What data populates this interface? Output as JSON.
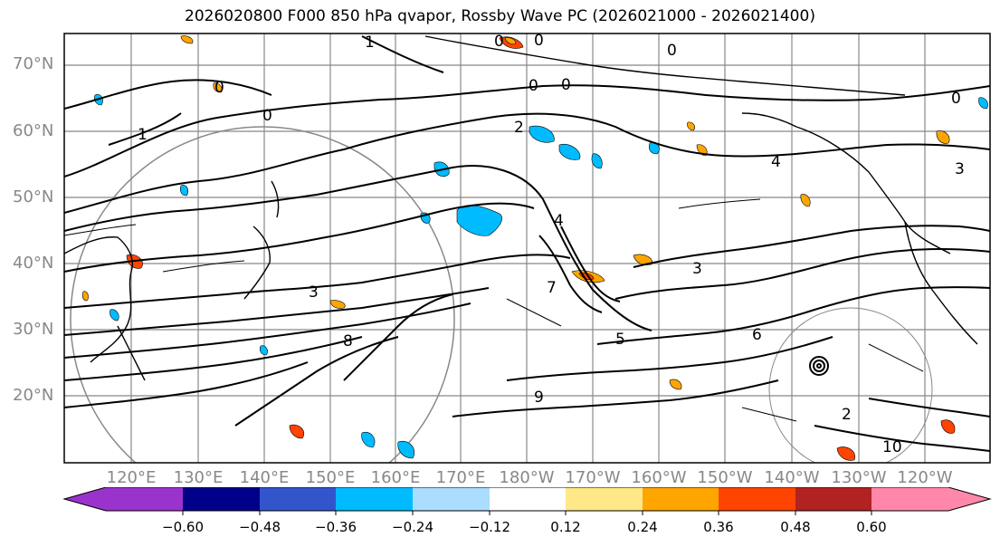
{
  "title": "2026020800 F000 850 hPa qvapor, Rossby Wave PC (2026021000 - 2026021400)",
  "lat_labels": [
    "70°N",
    "60°N",
    "50°N",
    "40°N",
    "30°N",
    "20°N"
  ],
  "lon_labels": [
    "120°E",
    "130°E",
    "140°E",
    "150°E",
    "160°E",
    "170°E",
    "180°W",
    "170°W",
    "160°W",
    "150°W",
    "140°W",
    "130°W",
    "120°W"
  ],
  "colorbar": {
    "colors": [
      "#9933cc",
      "#000088",
      "#3355cc",
      "#00bbff",
      "#aaddff",
      "#ffffff",
      "#ffe888",
      "#ffa500",
      "#ff4400",
      "#b22222",
      "#ff88aa"
    ],
    "tick_labels": [
      "−0.60",
      "−0.48",
      "−0.36",
      "−0.24",
      "−0.12",
      "0.12",
      "0.24",
      "0.36",
      "0.48",
      "0.60"
    ]
  },
  "contour_labels": [
    "0",
    "0",
    "0",
    "0",
    "0",
    "0",
    "0",
    "0",
    "1",
    "1",
    "2",
    "2",
    "3",
    "3",
    "3",
    "4",
    "4",
    "5",
    "6",
    "7",
    "8",
    "9",
    "10"
  ],
  "colors": {
    "grid": "#888888",
    "contour": "#000000",
    "coast": "#000000"
  }
}
